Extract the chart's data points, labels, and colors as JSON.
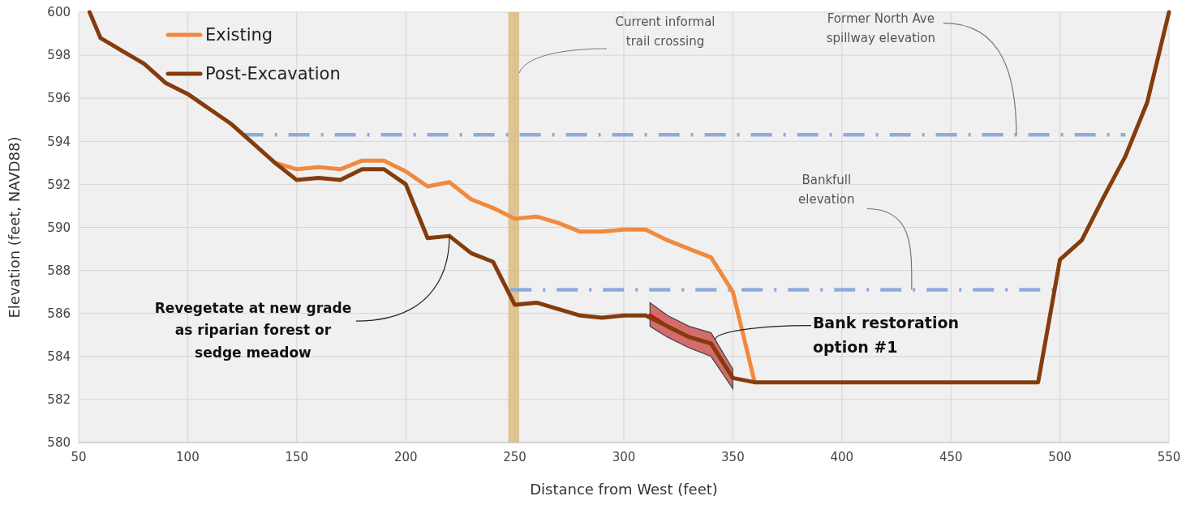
{
  "chart_data": {
    "type": "line",
    "xlabel": "Distance from West (feet)",
    "ylabel": "Elevation (feet, NAVD88)",
    "xlim": [
      50,
      550
    ],
    "xticks": [
      50,
      100,
      150,
      200,
      250,
      300,
      350,
      400,
      450,
      500,
      550
    ],
    "ylim": [
      580,
      600
    ],
    "yticks": [
      580,
      582,
      584,
      586,
      588,
      590,
      592,
      594,
      596,
      598,
      600
    ],
    "grid": true,
    "legend": "top left",
    "line_style": "solid",
    "marker": "none",
    "series": [
      {
        "name": "Existing",
        "color": "#ef8a3e",
        "x": [
          140,
          150,
          160,
          170,
          180,
          190,
          200,
          210,
          220,
          230,
          240,
          250,
          260,
          270,
          280,
          290,
          300,
          310,
          320,
          330,
          340,
          350,
          360
        ],
        "values": [
          593.0,
          592.7,
          592.8,
          592.7,
          593.1,
          593.1,
          592.6,
          591.9,
          592.1,
          591.3,
          590.9,
          590.4,
          590.5,
          590.2,
          589.8,
          589.8,
          589.9,
          589.9,
          589.4,
          589.0,
          588.6,
          587.0,
          582.8
        ]
      },
      {
        "name": "Post-Excavation",
        "color": "#843c0c",
        "x": [
          55,
          60,
          70,
          80,
          90,
          100,
          110,
          120,
          130,
          140,
          150,
          160,
          170,
          180,
          190,
          200,
          210,
          220,
          230,
          240,
          250,
          260,
          270,
          280,
          290,
          300,
          310,
          320,
          330,
          340,
          350,
          360,
          370,
          380,
          390,
          400,
          410,
          420,
          430,
          440,
          450,
          460,
          470,
          480,
          490,
          500,
          510,
          520,
          530,
          540,
          550
        ],
        "values": [
          600.0,
          598.8,
          598.2,
          597.6,
          596.7,
          596.2,
          595.5,
          594.8,
          593.9,
          593.0,
          592.2,
          592.3,
          592.2,
          592.7,
          592.7,
          592.0,
          589.5,
          589.6,
          588.8,
          588.4,
          586.4,
          586.5,
          586.2,
          585.9,
          585.8,
          585.9,
          585.9,
          585.4,
          584.9,
          584.6,
          583.0,
          582.8,
          582.8,
          582.8,
          582.8,
          582.8,
          582.8,
          582.8,
          582.8,
          582.8,
          582.8,
          582.8,
          582.8,
          582.8,
          582.8,
          588.5,
          589.4,
          591.4,
          593.3,
          595.8,
          600.0
        ]
      },
      {
        "type": "line",
        "color": "#c00000",
        "x": [
          312,
          320,
          330,
          340,
          350
        ],
        "values": [
          585.9,
          585.4,
          584.9,
          584.6,
          583.0
        ],
        "lower": [
          585.4,
          584.9,
          584.4,
          584.0,
          582.5
        ],
        "upper": [
          586.5,
          585.9,
          585.4,
          585.1,
          583.4
        ]
      },
      {
        "type": "line",
        "color": "#8faadc",
        "line_style": "dashed",
        "x": [
          125,
          530
        ],
        "values": [
          594.3,
          594.3
        ]
      },
      {
        "type": "line",
        "color": "#8faadc",
        "line_style": "dashed",
        "x": [
          248,
          498
        ],
        "values": [
          587.1,
          587.1
        ]
      }
    ],
    "bands": [
      {
        "axis": "x",
        "from": 247,
        "to": 252,
        "color": "#d9b87c",
        "label": "Current informal trail crossing"
      }
    ],
    "annotations": [
      {
        "text": "Revegetate at new grade as riparian forest or sedge meadow",
        "x": 220,
        "y": 589.6
      },
      {
        "text": "Bank restoration option #1",
        "x": 342,
        "y": 584.8
      },
      {
        "text": "Former North Ave spillway elevation",
        "x": 480,
        "y": 594.3
      },
      {
        "text": "Bankfull elevation",
        "x": 432,
        "y": 587.1
      }
    ]
  }
}
